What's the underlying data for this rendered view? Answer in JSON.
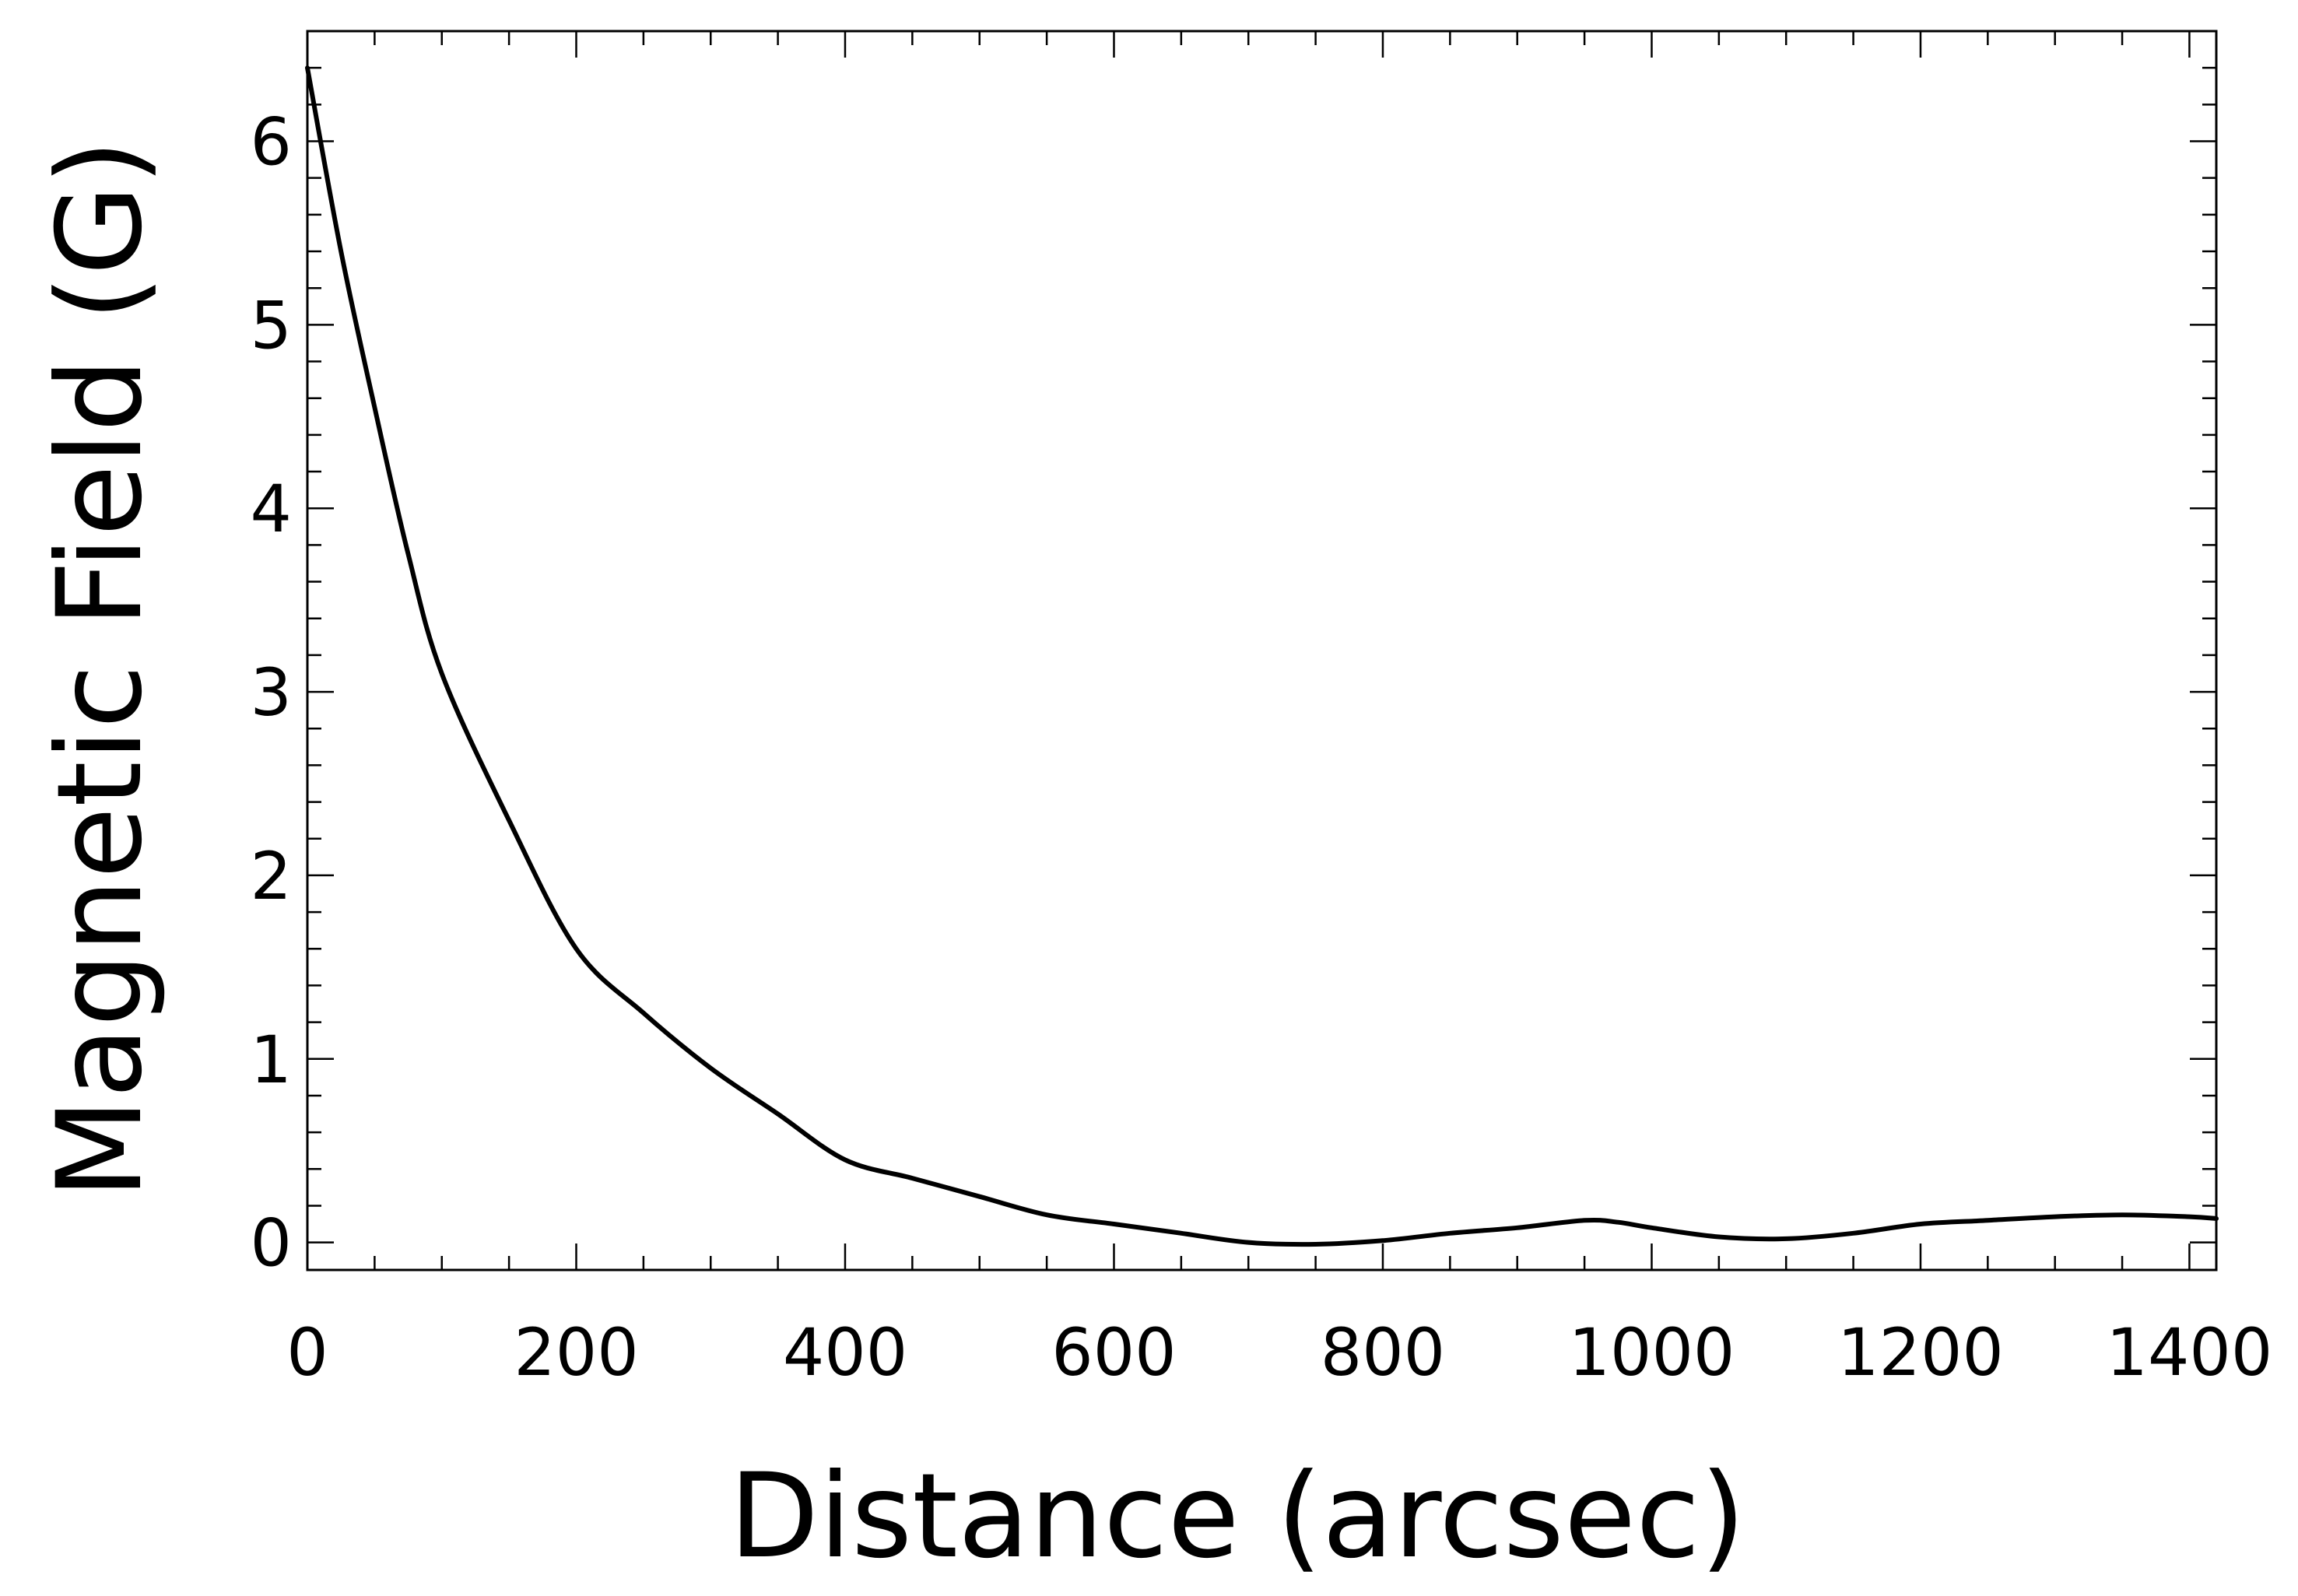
{
  "chart_data": {
    "type": "line",
    "title": "",
    "xlabel": "Distance (arcsec)",
    "ylabel": "Magnetic Field (G)",
    "xlim": [
      0,
      1420
    ],
    "ylim": [
      -0.15,
      6.6
    ],
    "x_ticks": [
      0,
      200,
      400,
      600,
      800,
      1000,
      1200,
      1400
    ],
    "x_tick_labels": [
      "0",
      "200",
      "400",
      "600",
      "800",
      "1000",
      "1200",
      "1400"
    ],
    "y_ticks": [
      0,
      1,
      2,
      3,
      4,
      5,
      6
    ],
    "y_tick_labels": [
      "0",
      "1",
      "2",
      "3",
      "4",
      "5",
      "6"
    ],
    "grid": false,
    "line_color": "#000000",
    "series": [
      {
        "x": [
          0,
          25,
          50,
          75,
          100,
          150,
          200,
          250,
          300,
          350,
          400,
          450,
          500,
          550,
          600,
          650,
          700,
          750,
          800,
          850,
          900,
          950,
          975,
          1000,
          1050,
          1100,
          1150,
          1200,
          1250,
          1300,
          1350,
          1400,
          1420
        ],
        "y": [
          6.4,
          5.4,
          4.55,
          3.75,
          3.1,
          2.3,
          1.6,
          1.25,
          0.95,
          0.7,
          0.45,
          0.35,
          0.25,
          0.15,
          0.1,
          0.05,
          0.0,
          -0.01,
          0.01,
          0.05,
          0.08,
          0.12,
          0.11,
          0.08,
          0.03,
          0.02,
          0.05,
          0.1,
          0.12,
          0.14,
          0.15,
          0.14,
          0.13
        ]
      }
    ]
  }
}
